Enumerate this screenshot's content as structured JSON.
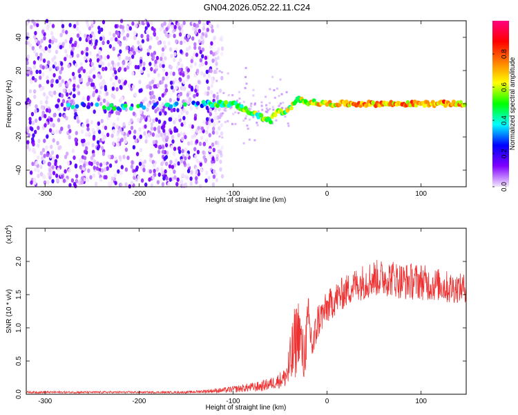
{
  "title": "GN04.2026.052.22.11.C24",
  "chart_data": [
    {
      "type": "heatmap",
      "xlabel": "Height of straight line (km)",
      "ylabel": "Frequency (Hz)",
      "xlim": [
        -320,
        148
      ],
      "ylim": [
        -50,
        50
      ],
      "xticks": [
        -300,
        -200,
        -100,
        0,
        100
      ],
      "yticks": [
        -40,
        -20,
        0,
        20,
        40
      ],
      "colorbar": {
        "label": "Normalized spectral amplitude",
        "range": [
          0,
          1
        ],
        "ticks": [
          0.0,
          0.2,
          0.4,
          0.6,
          0.8
        ],
        "colors": [
          "#f4e8ff",
          "#8000ff",
          "#0000ff",
          "#00ffff",
          "#00ff00",
          "#ffff00",
          "#ff8000",
          "#ff0000",
          "#ff0080"
        ]
      },
      "noise_region": {
        "x_from": -320,
        "x_to": -120,
        "amplitude": 0.15
      },
      "signal_track": [
        {
          "x": -295,
          "y": -2,
          "v": 0.25
        },
        {
          "x": -260,
          "y": -1,
          "v": 0.3
        },
        {
          "x": -228,
          "y": -2,
          "v": 0.4
        },
        {
          "x": -130,
          "y": 0,
          "v": 0.3
        },
        {
          "x": -118,
          "y": 0,
          "v": 0.5
        },
        {
          "x": -100,
          "y": 0,
          "v": 0.45
        },
        {
          "x": -85,
          "y": -4,
          "v": 0.5
        },
        {
          "x": -70,
          "y": -8,
          "v": 0.5
        },
        {
          "x": -60,
          "y": -10,
          "v": 0.5
        },
        {
          "x": -52,
          "y": -4,
          "v": 0.55
        },
        {
          "x": -45,
          "y": -6,
          "v": 0.55
        },
        {
          "x": -38,
          "y": -2,
          "v": 0.55
        },
        {
          "x": -30,
          "y": 3,
          "v": 0.6
        },
        {
          "x": -20,
          "y": 1,
          "v": 0.6
        },
        {
          "x": 0,
          "y": 0,
          "v": 0.65
        },
        {
          "x": 40,
          "y": 0,
          "v": 0.7
        },
        {
          "x": 80,
          "y": 0,
          "v": 0.7
        },
        {
          "x": 120,
          "y": 0,
          "v": 0.75
        },
        {
          "x": 148,
          "y": 0,
          "v": 0.7
        }
      ]
    },
    {
      "type": "line",
      "xlabel": "Height of straight line (km)",
      "ylabel": "SNR (10 * v/v)",
      "y_multiplier": "(x10",
      "y_multiplier_exp": "4",
      "y_multiplier_close": ")",
      "xlim": [
        -320,
        148
      ],
      "ylim": [
        0,
        25000
      ],
      "xticks": [
        -300,
        -200,
        -100,
        0,
        100
      ],
      "yticks": [
        0,
        5000,
        10000,
        15000,
        20000
      ],
      "ytick_labels": [
        "0.0",
        "0.5",
        "1.0",
        "1.5",
        "2.0"
      ],
      "color": "#ee3030",
      "series": [
        {
          "x": [
            -320,
            -250,
            -150,
            -110,
            -90,
            -70,
            -55,
            -45,
            -40,
            -35,
            -30,
            -25,
            -20,
            -15,
            -10,
            -5,
            0,
            10,
            20,
            30,
            40,
            50,
            60,
            70,
            80,
            90,
            100,
            110,
            120,
            130,
            140,
            148
          ],
          "y": [
            300,
            300,
            300,
            600,
            900,
            1200,
            1800,
            2500,
            4000,
            7000,
            10000,
            5000,
            11000,
            7000,
            11000,
            12000,
            13000,
            14500,
            15500,
            16500,
            17000,
            17500,
            17500,
            17500,
            17000,
            17000,
            17000,
            16500,
            16500,
            16000,
            16000,
            16000
          ],
          "noise": [
            150,
            150,
            150,
            400,
            600,
            800,
            1000,
            1500,
            4000,
            6000,
            5000,
            4000,
            4000,
            3000,
            3000,
            2500,
            2500,
            2500,
            2500,
            2500,
            2800,
            2800,
            2800,
            2800,
            2800,
            2800,
            2800,
            2500,
            2500,
            2500,
            2200,
            2200
          ]
        }
      ]
    }
  ]
}
